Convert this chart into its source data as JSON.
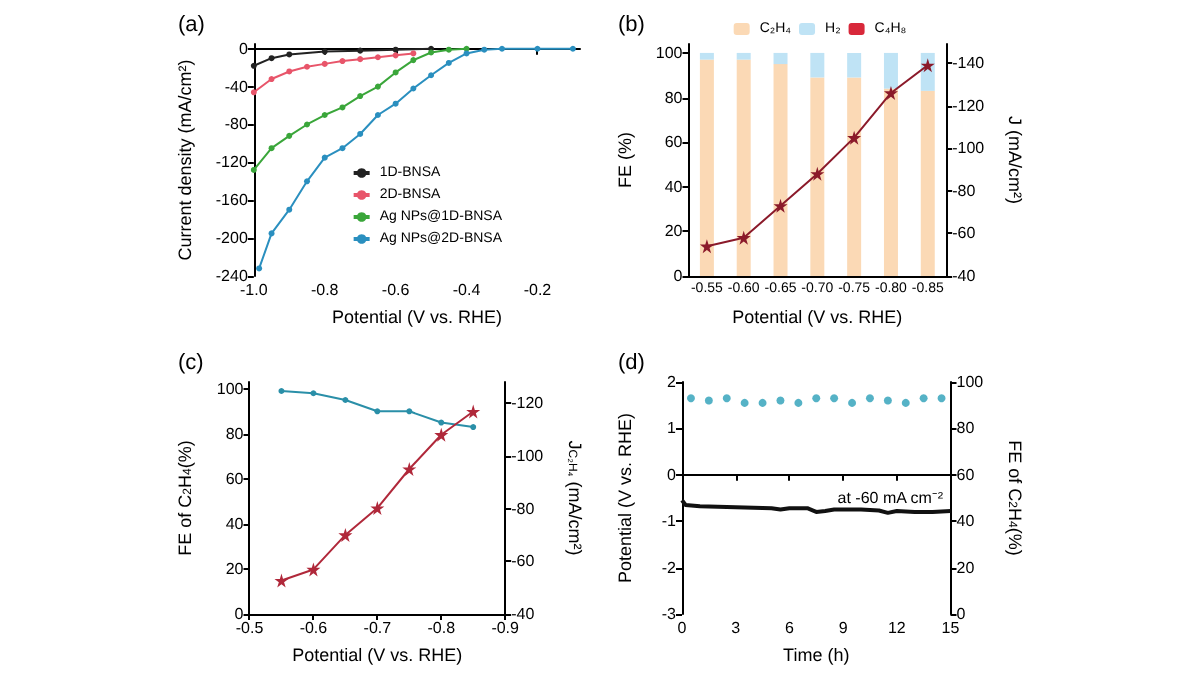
{
  "chart_data": [
    {
      "type": "line",
      "title": "(a)",
      "xlabel": "Potential (V vs. RHE)",
      "ylabel": "Current density (mA/cm²)",
      "xlim": [
        -1.0,
        -0.08
      ],
      "xticks": [
        {
          "value": -1.0,
          "label": "-1.0"
        },
        -0.8,
        -0.6,
        -0.4,
        -0.2
      ],
      "ylim": [
        -240,
        5
      ],
      "yticks": [
        0,
        -40,
        -80,
        -120,
        -160,
        -200,
        -240
      ],
      "legend": "bottom right",
      "marker": "circle",
      "series": [
        {
          "name": "1D-BNSA",
          "color": "#222222",
          "x": [
            -1.0,
            -0.95,
            -0.9,
            -0.8,
            -0.7,
            -0.6,
            -0.5
          ],
          "values": [
            -18,
            -10,
            -6,
            -3,
            -2,
            -1,
            0
          ]
        },
        {
          "name": "2D-BNSA",
          "color": "#e8556a",
          "x": [
            -1.0,
            -0.95,
            -0.9,
            -0.85,
            -0.8,
            -0.75,
            -0.7,
            -0.65,
            -0.6,
            -0.55
          ],
          "values": [
            -46,
            -32,
            -24,
            -19,
            -16,
            -13,
            -11,
            -9,
            -7,
            -5
          ]
        },
        {
          "name": "Ag NPs@1D-BNSA",
          "color": "#3aa63a",
          "x": [
            -1.0,
            -0.95,
            -0.9,
            -0.85,
            -0.8,
            -0.75,
            -0.7,
            -0.65,
            -0.6,
            -0.55,
            -0.5,
            -0.45,
            -0.4
          ],
          "values": [
            -128,
            -105,
            -92,
            -80,
            -70,
            -62,
            -50,
            -40,
            -25,
            -12,
            -4,
            -1,
            0
          ]
        },
        {
          "name": "Ag NPs@2D-BNSA",
          "color": "#2a8fbf",
          "x": [
            -0.985,
            -0.95,
            -0.9,
            -0.85,
            -0.8,
            -0.75,
            -0.7,
            -0.65,
            -0.6,
            -0.55,
            -0.5,
            -0.45,
            -0.4,
            -0.35,
            -0.3,
            -0.2,
            -0.1
          ],
          "values": [
            -232,
            -195,
            -170,
            -140,
            -115,
            -105,
            -90,
            -70,
            -58,
            -42,
            -28,
            -15,
            -5,
            -1,
            0,
            0,
            0
          ]
        }
      ]
    },
    {
      "type": "bar",
      "title": "(b)",
      "stacked": true,
      "xlabel": "Potential (V vs. RHE)",
      "ylabel": "FE (%)",
      "y2label": "J (mA/cm²)",
      "categories": [
        "-0.55",
        "-0.60",
        "-0.65",
        "-0.70",
        "-0.75",
        "-0.80",
        "-0.85"
      ],
      "ylim": [
        0,
        104
      ],
      "yticks": [
        0,
        20,
        40,
        60,
        80,
        100
      ],
      "y2lim": [
        -40,
        -149
      ],
      "y2ticks": [
        -40,
        -60,
        -80,
        -100,
        -120,
        -140
      ],
      "legend": "top",
      "series": [
        {
          "name": "C₂H₄",
          "color": "#fbd9b5",
          "values": [
            97,
            97,
            95,
            89,
            89,
            84,
            83
          ]
        },
        {
          "name": "H₂",
          "color": "#bfe3f5",
          "values": [
            3,
            3,
            5,
            11,
            11,
            16,
            17
          ]
        },
        {
          "name": "C₄H₈",
          "color": "#d8283a",
          "values": [
            0,
            0,
            0,
            0,
            0,
            0,
            0
          ]
        },
        {
          "type": "line",
          "axis": "y2",
          "marker": "star",
          "color": "#8b1a2a",
          "values": [
            -54,
            -58,
            -73,
            -88,
            -105,
            -126,
            -139
          ]
        }
      ]
    },
    {
      "type": "line",
      "title": "(c)",
      "xlabel": "Potential (V vs. RHE)",
      "ylabel": "FE of C$_{2}$H$_{4}$(%)",
      "y2label": "J$_{C₂H₄}$ (mA/cm²)",
      "xlim": [
        -0.5,
        -0.9
      ],
      "xticks": [
        -0.5,
        -0.6,
        -0.7,
        -0.8,
        -0.9
      ],
      "ylim": [
        0,
        103
      ],
      "yticks": [
        0,
        20,
        40,
        60,
        80,
        100
      ],
      "y2lim": [
        -40,
        -128
      ],
      "y2ticks": [
        -40,
        -60,
        -80,
        -100,
        -120
      ],
      "series": [
        {
          "marker": "circle",
          "color": "#2a8fa8",
          "x": [
            -0.55,
            -0.6,
            -0.65,
            -0.7,
            -0.75,
            -0.8,
            -0.85
          ],
          "values": [
            99,
            98,
            95,
            90,
            90,
            85,
            83
          ]
        },
        {
          "marker": "star",
          "axis": "y2",
          "color": "#b0283a",
          "x": [
            -0.55,
            -0.6,
            -0.65,
            -0.7,
            -0.75,
            -0.8,
            -0.85
          ],
          "values": [
            -52.7,
            -56.9,
            -70,
            -80.2,
            -95,
            -108,
            -116.8
          ]
        }
      ]
    },
    {
      "type": "line",
      "title": "(d)",
      "xlabel": "Time (h)",
      "ylabel": "Potential (V vs. RHE)",
      "y2label": "FE of C$_{2}$H$_{4}$(%)",
      "xlim": [
        0,
        15
      ],
      "xticks": [
        0,
        3,
        6,
        9,
        12,
        15
      ],
      "ylim": [
        -3,
        2
      ],
      "yticks": [
        -3,
        -2,
        -1,
        0,
        1,
        2
      ],
      "y2lim": [
        0,
        100
      ],
      "y2ticks": [
        0,
        20,
        40,
        60,
        80,
        100
      ],
      "annotations": [
        "at -60 mA cm⁻²"
      ],
      "series": [
        {
          "marker": "none",
          "color": "#111111",
          "x": [
            0,
            0.2,
            1,
            2,
            3,
            4,
            5,
            5.5,
            6,
            7,
            7.5,
            8,
            8.5,
            10,
            11,
            11.5,
            12,
            13,
            14,
            15
          ],
          "values": [
            -0.55,
            -0.65,
            -0.68,
            -0.69,
            -0.7,
            -0.71,
            -0.72,
            -0.75,
            -0.72,
            -0.72,
            -0.8,
            -0.78,
            -0.75,
            -0.75,
            -0.77,
            -0.82,
            -0.78,
            -0.8,
            -0.8,
            -0.78
          ]
        },
        {
          "type": "scatter",
          "marker": "circle",
          "axis": "y2",
          "color": "#2a9fb8",
          "x": [
            0.5,
            1.5,
            2.5,
            3.5,
            4.5,
            5.5,
            6.5,
            7.5,
            8.5,
            9.5,
            10.5,
            11.5,
            12.5,
            13.5,
            14.5
          ],
          "values": [
            93,
            92,
            93,
            91,
            91,
            92,
            91,
            93,
            93,
            91,
            93,
            92,
            91,
            93,
            93
          ]
        }
      ]
    }
  ]
}
